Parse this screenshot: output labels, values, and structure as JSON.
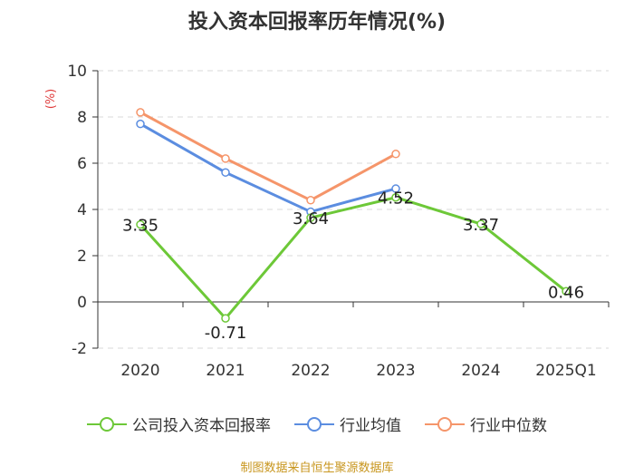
{
  "chart_data": {
    "type": "line",
    "title": "投入资本回报率历年情况(%)",
    "ylabel": "(%)",
    "xlabel": "",
    "ylim": [
      -2,
      10
    ],
    "yticks": [
      -2,
      0,
      2,
      4,
      6,
      8,
      10
    ],
    "categories": [
      "2020",
      "2021",
      "2022",
      "2023",
      "2024",
      "2025Q1"
    ],
    "grid": true,
    "legend_position": "bottom",
    "series": [
      {
        "name": "公司投入资本回报率",
        "color": "#6dc838",
        "values": [
          3.35,
          -0.71,
          3.64,
          4.52,
          3.37,
          0.46
        ],
        "labels": [
          "3.35",
          "-0.71",
          "3.64",
          "4.52",
          "3.37",
          "0.46"
        ]
      },
      {
        "name": "行业均值",
        "color": "#5b8de0",
        "values": [
          7.7,
          5.6,
          3.9,
          4.9,
          null,
          null
        ]
      },
      {
        "name": "行业中位数",
        "color": "#f5956a",
        "values": [
          8.2,
          6.2,
          4.4,
          6.4,
          null,
          null
        ]
      }
    ]
  },
  "source": "制图数据来自恒生聚源数据库"
}
